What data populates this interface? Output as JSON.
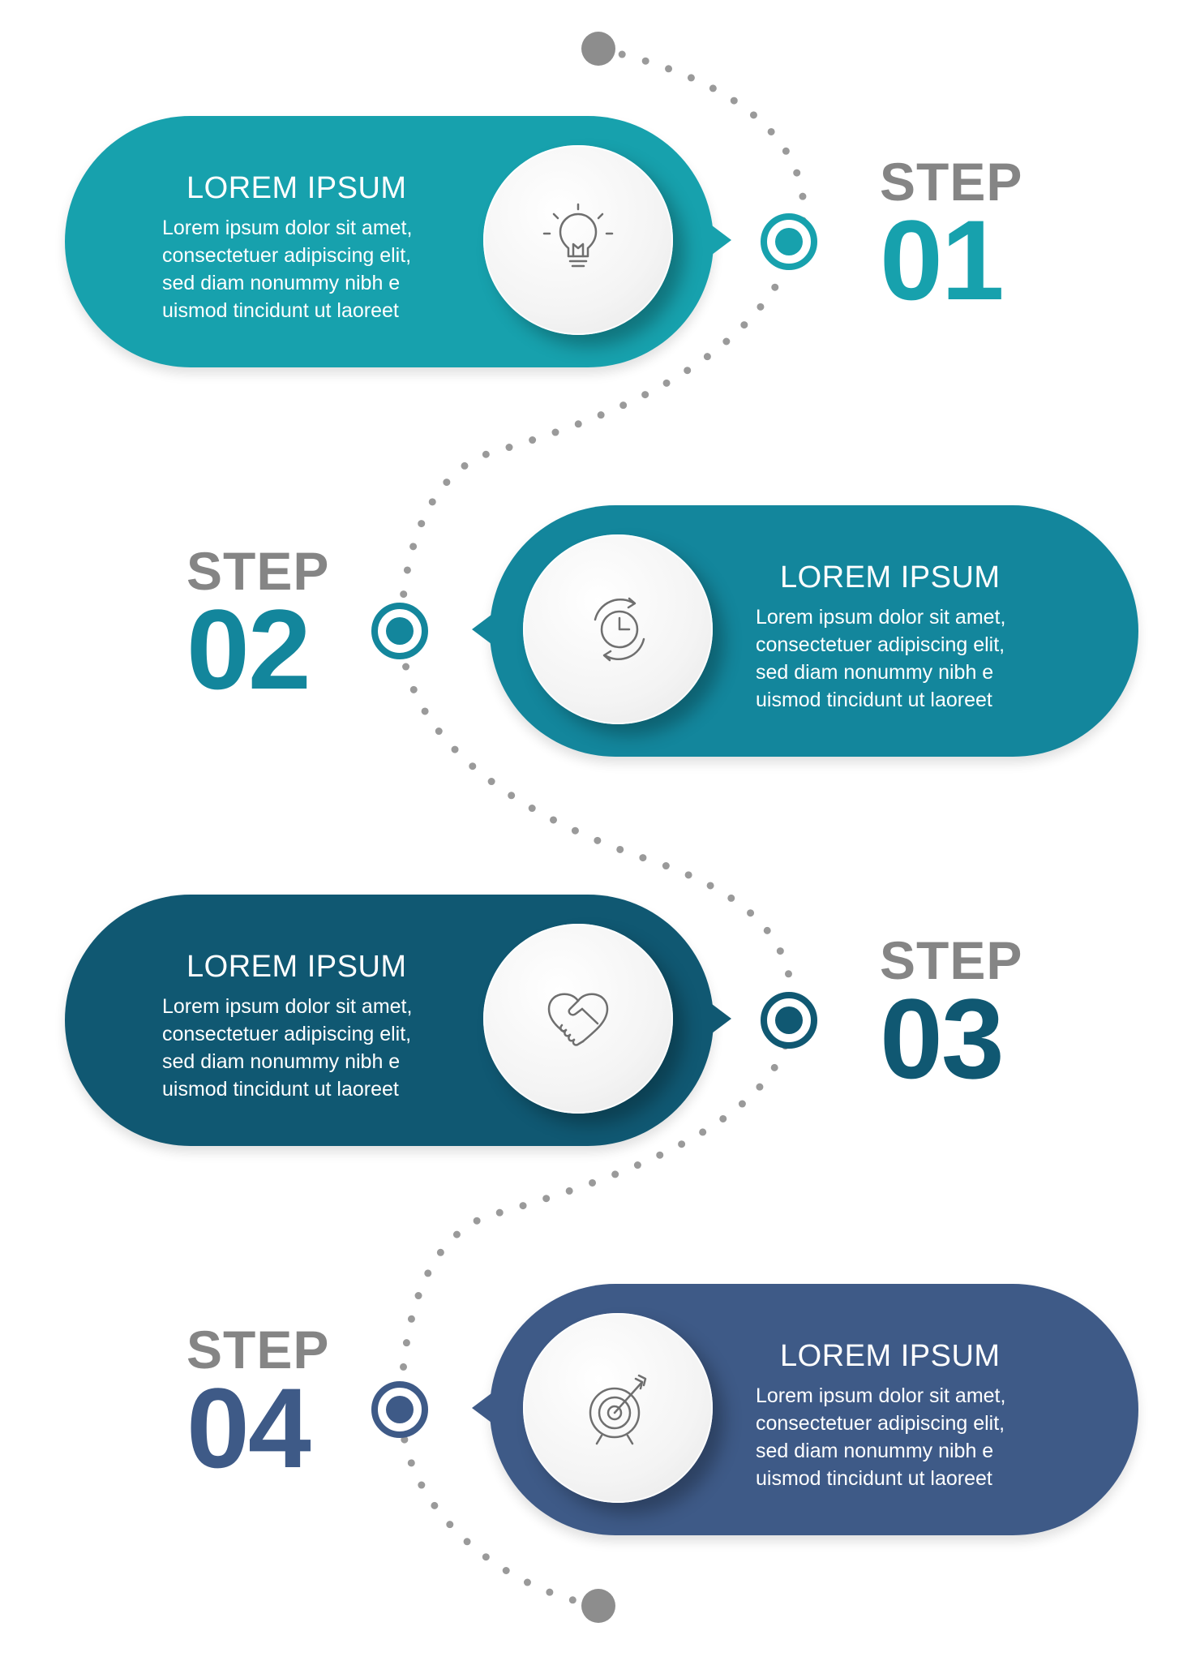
{
  "colors": {
    "step1": "#17a1ad",
    "step2": "#13869c",
    "step3": "#105872",
    "step4": "#3e5a87",
    "path_dots": "#9a9a9a",
    "step_word": "#858585"
  },
  "steps": [
    {
      "step_word": "STEP",
      "number": "01",
      "title": "LOREM IPSUM",
      "body": "Lorem ipsum dolor sit amet, consectetuer adipiscing elit, sed diam nonummy nibh e uismod tincidunt ut laoreet",
      "icon": "lightbulb-icon"
    },
    {
      "step_word": "STEP",
      "number": "02",
      "title": "LOREM IPSUM",
      "body": "Lorem ipsum dolor sit amet, consectetuer adipiscing elit, sed diam nonummy nibh e uismod tincidunt ut laoreet",
      "icon": "clock-cycle-icon"
    },
    {
      "step_word": "STEP",
      "number": "03",
      "title": "LOREM IPSUM",
      "body": "Lorem ipsum dolor sit amet, consectetuer adipiscing elit, sed diam nonummy nibh e uismod tincidunt ut laoreet",
      "icon": "handshake-icon"
    },
    {
      "step_word": "STEP",
      "number": "04",
      "title": "LOREM IPSUM",
      "body": "Lorem ipsum dolor sit amet, consectetuer adipiscing elit, sed diam nonummy nibh e uismod tincidunt ut laoreet",
      "icon": "target-icon"
    }
  ]
}
